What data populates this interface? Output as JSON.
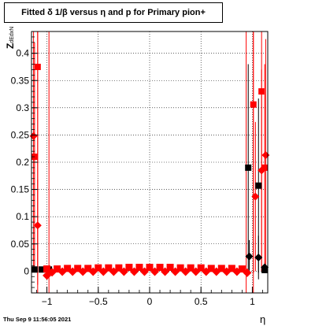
{
  "chart_data": {
    "type": "scatter",
    "title": "Fitted δ 1/β versus η and p for Primary pion+",
    "xlabel": "η",
    "ylabel": "Z",
    "ylabel_sub": "dEdxN",
    "timestamp": "Thu Sep  9 11:56:05 2021",
    "xlim": [
      -1.15,
      1.15
    ],
    "ylim": [
      -0.04,
      0.44
    ],
    "xticks": [
      -1,
      -0.5,
      0,
      0.5,
      1
    ],
    "xtick_labels": [
      "−1",
      "−0.5",
      "0",
      "0.5",
      "1"
    ],
    "yticks": [
      0,
      0.05,
      0.1,
      0.15,
      0.2,
      0.25,
      0.3,
      0.35,
      0.4
    ],
    "ytick_labels": [
      "0",
      "0.05",
      "0.1",
      "0.15",
      "0.2",
      "0.25",
      "0.3",
      "0.35",
      "0.4"
    ],
    "grid": true,
    "colors": {
      "red": "#ff0000",
      "black": "#000000"
    },
    "series": [
      {
        "marker": "square",
        "color": "#000000",
        "points": [
          {
            "x": -1.12,
            "y": 0.003,
            "err": 0.004
          },
          {
            "x": -1.05,
            "y": 0.003,
            "err": 0.004
          },
          {
            "x": -0.98,
            "y": 0.003,
            "err": 0.004
          },
          {
            "x": 0.96,
            "y": 0.19,
            "err": 0.19
          },
          {
            "x": 1.06,
            "y": 0.157,
            "err": 0.16
          },
          {
            "x": 1.12,
            "y": 0.002,
            "err": 0.005
          }
        ]
      },
      {
        "marker": "diamond",
        "color": "#000000",
        "points": [
          {
            "x": 0.97,
            "y": 0.027,
            "err": 0.03
          },
          {
            "x": 1.06,
            "y": 0.025,
            "err": 0.04
          },
          {
            "x": 1.12,
            "y": 0.007,
            "err": 0.01
          }
        ]
      },
      {
        "marker": "square",
        "color": "#ff0000",
        "points": [
          {
            "x": -1.09,
            "y": 0.375,
            "err": 0.4
          },
          {
            "x": -1.12,
            "y": 0.21,
            "err": 0.21
          },
          {
            "x": 1.01,
            "y": 0.306,
            "err": 0.31
          },
          {
            "x": 1.09,
            "y": 0.33,
            "err": 0.33
          },
          {
            "x": 1.12,
            "y": 0.19,
            "err": 0.19
          }
        ]
      },
      {
        "marker": "diamond",
        "color": "#ff0000",
        "points": [
          {
            "x": -1.13,
            "y": 0.248,
            "err": 0.25
          },
          {
            "x": -1.09,
            "y": 0.084,
            "err": 0.084
          },
          {
            "x": 1.03,
            "y": 0.137,
            "err": 0.137
          },
          {
            "x": 1.09,
            "y": 0.185,
            "err": 0.185
          },
          {
            "x": 1.13,
            "y": 0.213,
            "err": 0.213
          }
        ]
      },
      {
        "marker": "square",
        "color": "#ff0000",
        "band": true,
        "points": [
          {
            "x": -1.0,
            "y": 0.004
          },
          {
            "x": -0.9,
            "y": 0.004
          },
          {
            "x": -0.8,
            "y": 0.005
          },
          {
            "x": -0.7,
            "y": 0.005
          },
          {
            "x": -0.6,
            "y": 0.005
          },
          {
            "x": -0.5,
            "y": 0.006
          },
          {
            "x": -0.4,
            "y": 0.006
          },
          {
            "x": -0.3,
            "y": 0.006
          },
          {
            "x": -0.2,
            "y": 0.007
          },
          {
            "x": -0.1,
            "y": 0.007
          },
          {
            "x": 0.0,
            "y": 0.007
          },
          {
            "x": 0.1,
            "y": 0.007
          },
          {
            "x": 0.2,
            "y": 0.007
          },
          {
            "x": 0.3,
            "y": 0.006
          },
          {
            "x": 0.4,
            "y": 0.006
          },
          {
            "x": 0.5,
            "y": 0.006
          },
          {
            "x": 0.6,
            "y": 0.005
          },
          {
            "x": 0.7,
            "y": 0.005
          },
          {
            "x": 0.8,
            "y": 0.005
          },
          {
            "x": 0.9,
            "y": 0.004
          }
        ]
      },
      {
        "marker": "diamond",
        "color": "#ff0000",
        "band": true,
        "points": [
          {
            "x": -1.0,
            "y": -0.008
          },
          {
            "x": -0.95,
            "y": -0.002
          },
          {
            "x": -0.85,
            "y": -0.001
          },
          {
            "x": -0.75,
            "y": -0.001
          },
          {
            "x": -0.65,
            "y": -0.001
          },
          {
            "x": -0.55,
            "y": -0.001
          },
          {
            "x": -0.45,
            "y": -0.001
          },
          {
            "x": -0.35,
            "y": -0.001
          },
          {
            "x": -0.25,
            "y": -0.001
          },
          {
            "x": -0.15,
            "y": -0.001
          },
          {
            "x": -0.05,
            "y": -0.001
          },
          {
            "x": 0.05,
            "y": -0.001
          },
          {
            "x": 0.15,
            "y": -0.001
          },
          {
            "x": 0.25,
            "y": -0.001
          },
          {
            "x": 0.35,
            "y": -0.001
          },
          {
            "x": 0.45,
            "y": -0.001
          },
          {
            "x": 0.55,
            "y": -0.001
          },
          {
            "x": 0.65,
            "y": -0.001
          },
          {
            "x": 0.75,
            "y": -0.001
          },
          {
            "x": 0.85,
            "y": -0.001
          },
          {
            "x": 0.95,
            "y": -0.003
          }
        ]
      }
    ],
    "vertical_lines": [
      {
        "x": -1.09,
        "color": "#ff0000"
      },
      {
        "x": -0.98,
        "color": "#ff0000"
      },
      {
        "x": 0.94,
        "color": "#ff0000"
      },
      {
        "x": 1.01,
        "color": "#ff0000"
      }
    ]
  }
}
